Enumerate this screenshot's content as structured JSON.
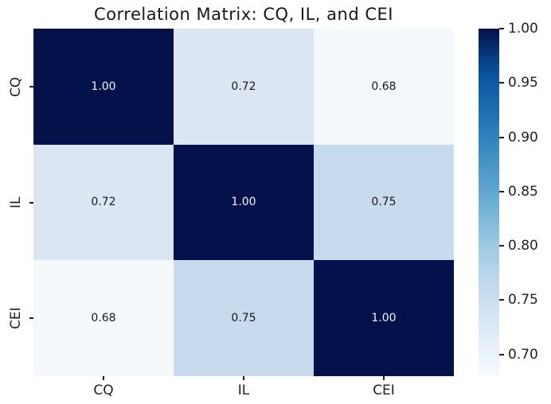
{
  "chart_data": {
    "type": "heatmap",
    "title": "Correlation Matrix: CQ, IL, and CEI",
    "x_categories": [
      "CQ",
      "IL",
      "CEI"
    ],
    "y_categories": [
      "CQ",
      "IL",
      "CEI"
    ],
    "matrix": [
      [
        1.0,
        0.72,
        0.68
      ],
      [
        0.72,
        1.0,
        0.75
      ],
      [
        0.68,
        0.75,
        1.0
      ]
    ],
    "cell_labels": [
      [
        "1.00",
        "0.72",
        "0.68"
      ],
      [
        "0.72",
        "1.00",
        "0.75"
      ],
      [
        "0.68",
        "0.75",
        "1.00"
      ]
    ],
    "cell_colors": [
      [
        "#05114a",
        "#dce6f3",
        "#f6f9fc"
      ],
      [
        "#dce6f3",
        "#05114a",
        "#c7daee"
      ],
      [
        "#f6f9fc",
        "#c7daee",
        "#05114a"
      ]
    ],
    "cell_text_colors": [
      [
        "#f2f4fa",
        "#16161f",
        "#16161f"
      ],
      [
        "#16161f",
        "#f2f4fa",
        "#16161f"
      ],
      [
        "#16161f",
        "#16161f",
        "#f2f4fa"
      ]
    ],
    "colormap": "Blues",
    "vmin": 0.68,
    "vmax": 1.0,
    "grid": false,
    "colorbar": {
      "position": "right",
      "tick_labels": [
        "1.00",
        "0.95",
        "0.90",
        "0.85",
        "0.80",
        "0.75",
        "0.70"
      ],
      "tick_values": [
        1.0,
        0.95,
        0.9,
        0.85,
        0.8,
        0.75,
        0.7
      ],
      "gradient_stops": [
        {
          "pos": 0.0,
          "color": "#05114a"
        },
        {
          "pos": 0.125,
          "color": "#08519c"
        },
        {
          "pos": 0.25,
          "color": "#2171b5"
        },
        {
          "pos": 0.375,
          "color": "#4292c6"
        },
        {
          "pos": 0.5,
          "color": "#6baed6"
        },
        {
          "pos": 0.625,
          "color": "#9ecae1"
        },
        {
          "pos": 0.75,
          "color": "#c6dbef"
        },
        {
          "pos": 0.875,
          "color": "#deebf7"
        },
        {
          "pos": 1.0,
          "color": "#f7fbff"
        }
      ]
    }
  },
  "colors": {
    "background": "#ffffff",
    "title_text": "#15151f",
    "tick_text": "#1f1f1f"
  }
}
